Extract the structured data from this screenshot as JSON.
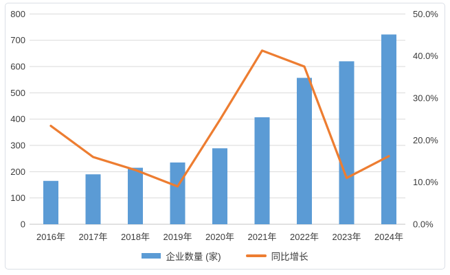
{
  "page": {
    "background": "#ffffff",
    "frame_border_color": "#dadfe6"
  },
  "chart_data": {
    "type": "combo_bar_line",
    "title": "",
    "xlabel": "",
    "ylabel_left": "",
    "ylabel_right": "",
    "grid": true,
    "legend_position": "bottom",
    "categories": [
      "2016年",
      "2017年",
      "2018年",
      "2019年",
      "2020年",
      "2021年",
      "2022年",
      "2023年",
      "2024年"
    ],
    "series": [
      {
        "name": "企业数量 (家)",
        "chart_type": "bar",
        "axis": "left",
        "color": "#5B9BD5",
        "values": [
          165,
          190,
          215,
          235,
          289,
          407,
          557,
          620,
          722
        ]
      },
      {
        "name": "同比增长",
        "chart_type": "line",
        "axis": "right",
        "color": "#ED7D31",
        "values": [
          23.4,
          16.0,
          12.9,
          9.0,
          24.8,
          41.3,
          37.5,
          11.0,
          16.2
        ]
      }
    ],
    "left_axis": {
      "min": 0,
      "max": 800,
      "step": 100,
      "tick_labels": [
        "0",
        "100",
        "200",
        "300",
        "400",
        "500",
        "600",
        "700",
        "800"
      ]
    },
    "right_axis": {
      "min": 0,
      "max": 50,
      "step": 10,
      "tick_labels": [
        "0.0%",
        "10.0%",
        "20.0%",
        "30.0%",
        "40.0%",
        "50.0%"
      ]
    },
    "legend": {
      "items": [
        {
          "label": "企业数量 (家)"
        },
        {
          "label": "同比增长"
        }
      ]
    },
    "colors": {
      "gridline": "#d9d9d9",
      "axis_baseline": "#c3c3c3",
      "tick_text": "#3b3b3b"
    }
  }
}
